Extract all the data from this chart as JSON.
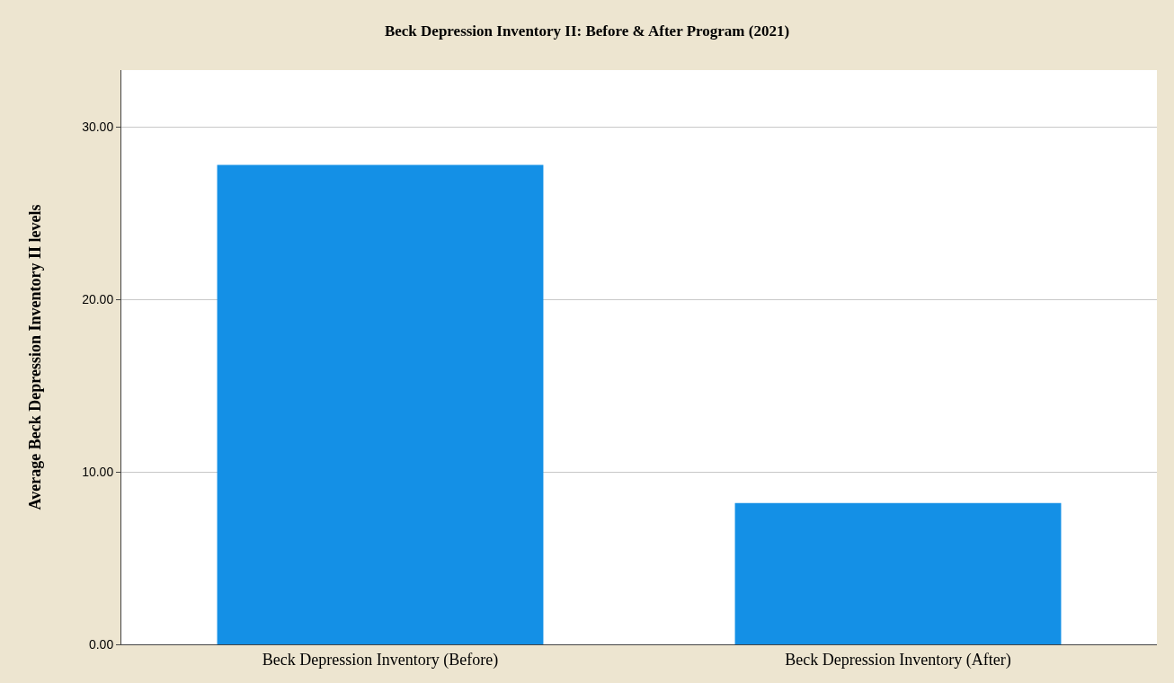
{
  "chart_data": {
    "type": "bar",
    "title": "Beck Depression Inventory II: Before & After Program (2021)",
    "ylabel": "Average Beck Depression Inventory II levels",
    "categories": [
      "Beck Depression Inventory (Before)",
      "Beck Depression Inventory (After)"
    ],
    "values": [
      27.8,
      8.2
    ],
    "color": "#1490e6",
    "ylim": [
      0,
      33.3
    ],
    "yticks": [
      {
        "value": 0,
        "label": "0.00"
      },
      {
        "value": 10,
        "label": "10.00"
      },
      {
        "value": 20,
        "label": "20.00"
      },
      {
        "value": 30,
        "label": "30.00"
      }
    ],
    "grid": "y"
  }
}
